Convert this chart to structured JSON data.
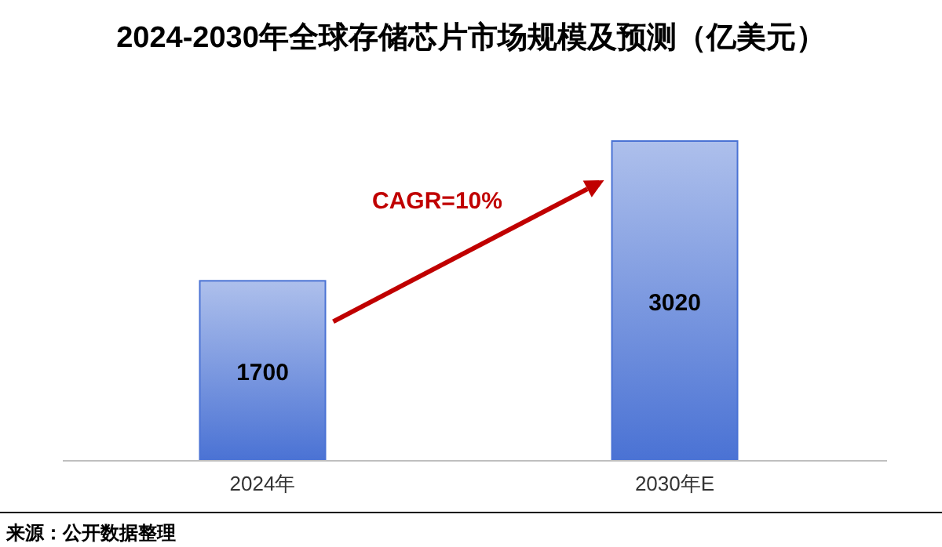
{
  "chart_data": {
    "type": "bar",
    "title": "2024-2030年全球存储芯片市场规模及预测（亿美元）",
    "categories": [
      "2024年",
      "2030年E"
    ],
    "values": [
      1700,
      3020
    ],
    "color": "#4a72d4",
    "data_labels": true,
    "annotations": [
      "CAGR=10%",
      "来源：公开数据整理"
    ]
  }
}
